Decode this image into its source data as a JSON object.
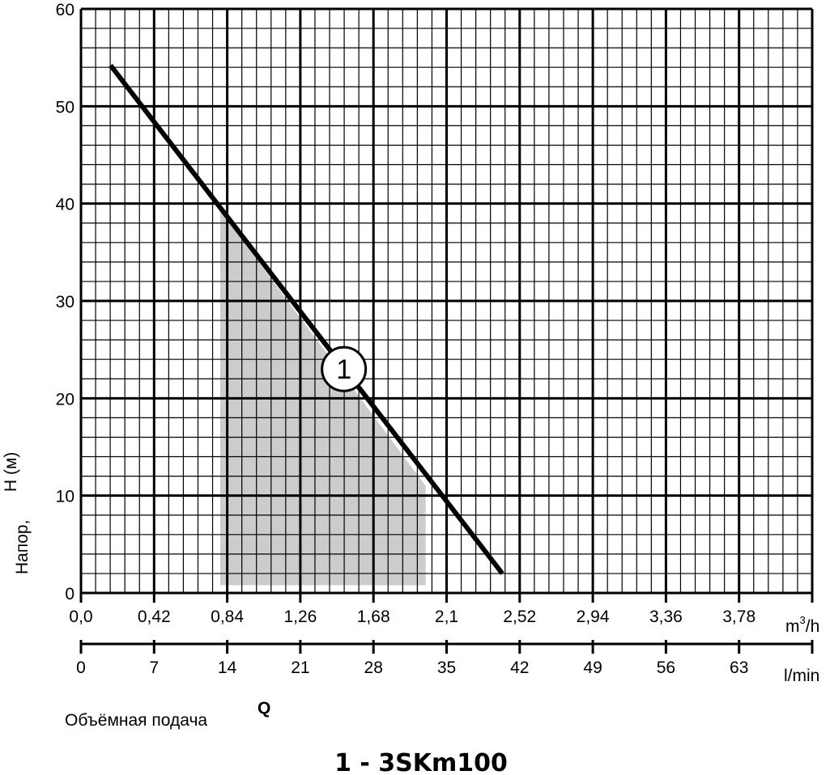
{
  "chart_data": {
    "type": "line",
    "title": "1 - 3SKm100",
    "ylabel_line1": "Напор,",
    "ylabel_line2": "H (м)",
    "xlabel_symbol": "Q",
    "xlabel_caption": "Объёмная подача",
    "x_unit_primary_base": "m",
    "x_unit_primary_exp": "3",
    "x_unit_primary_tail": "/h",
    "x_unit_secondary": "l/min",
    "xlim": [
      0,
      4.2
    ],
    "ylim": [
      0,
      60
    ],
    "grid": true,
    "y_ticks": [
      0,
      10,
      20,
      30,
      40,
      50,
      60
    ],
    "y_tick_labels": [
      "0",
      "10",
      "20",
      "30",
      "40",
      "50",
      "60"
    ],
    "x_ticks": [
      0,
      0.42,
      0.84,
      1.26,
      1.68,
      2.1,
      2.52,
      2.94,
      3.36,
      3.78
    ],
    "x_tick_labels": [
      "0,0",
      "0,42",
      "0,84",
      "1,26",
      "1,68",
      "2,1",
      "2,52",
      "2,94",
      "3,36",
      "3,78"
    ],
    "x2_ticks": [
      0,
      7,
      14,
      21,
      28,
      35,
      42,
      49,
      56,
      63
    ],
    "x2_tick_labels": [
      "0",
      "7",
      "14",
      "21",
      "28",
      "35",
      "42",
      "49",
      "56",
      "63"
    ],
    "series": [
      {
        "marker_label": "1",
        "color": "#000000",
        "x": [
          0.17,
          2.42
        ],
        "y": [
          54.2,
          2.0
        ]
      }
    ],
    "shaded_region": {
      "color": "#cccccc",
      "x": [
        0.8,
        0.8,
        1.98,
        1.98
      ],
      "y": [
        0.8,
        39.3,
        11.0,
        0.8
      ]
    },
    "marker_position": {
      "x": 1.51,
      "y": 23
    }
  }
}
